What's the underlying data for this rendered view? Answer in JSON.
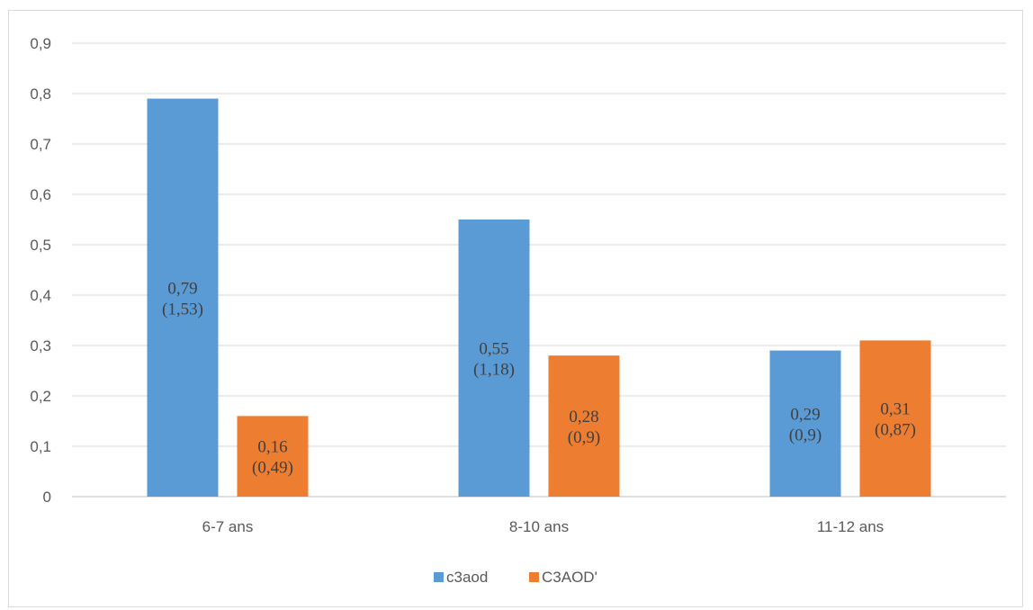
{
  "chart_data": {
    "type": "bar",
    "categories": [
      "6-7 ans",
      "8-10 ans",
      "11-12 ans"
    ],
    "series": [
      {
        "name": "c3aod",
        "color": "#5b9bd5",
        "values": [
          0.79,
          0.55,
          0.29
        ],
        "labels": [
          [
            "0,79",
            "(1,53)"
          ],
          [
            "0,55",
            "(1,18)"
          ],
          [
            "0,29",
            "(0,9)"
          ]
        ]
      },
      {
        "name": "C3AOD'",
        "color": "#ed7d31",
        "values": [
          0.16,
          0.28,
          0.31
        ],
        "labels": [
          [
            "0,16",
            "(0,49)"
          ],
          [
            "0,28",
            "(0,9)"
          ],
          [
            "0,31",
            "(0,87)"
          ]
        ]
      }
    ],
    "yticks": [
      "0",
      "0,1",
      "0,2",
      "0,3",
      "0,4",
      "0,5",
      "0,6",
      "0,7",
      "0,8",
      "0,9"
    ],
    "ylim": [
      0,
      0.9
    ],
    "grid": true,
    "legend": "bottom-center",
    "title": "",
    "xlabel": "",
    "ylabel": ""
  }
}
